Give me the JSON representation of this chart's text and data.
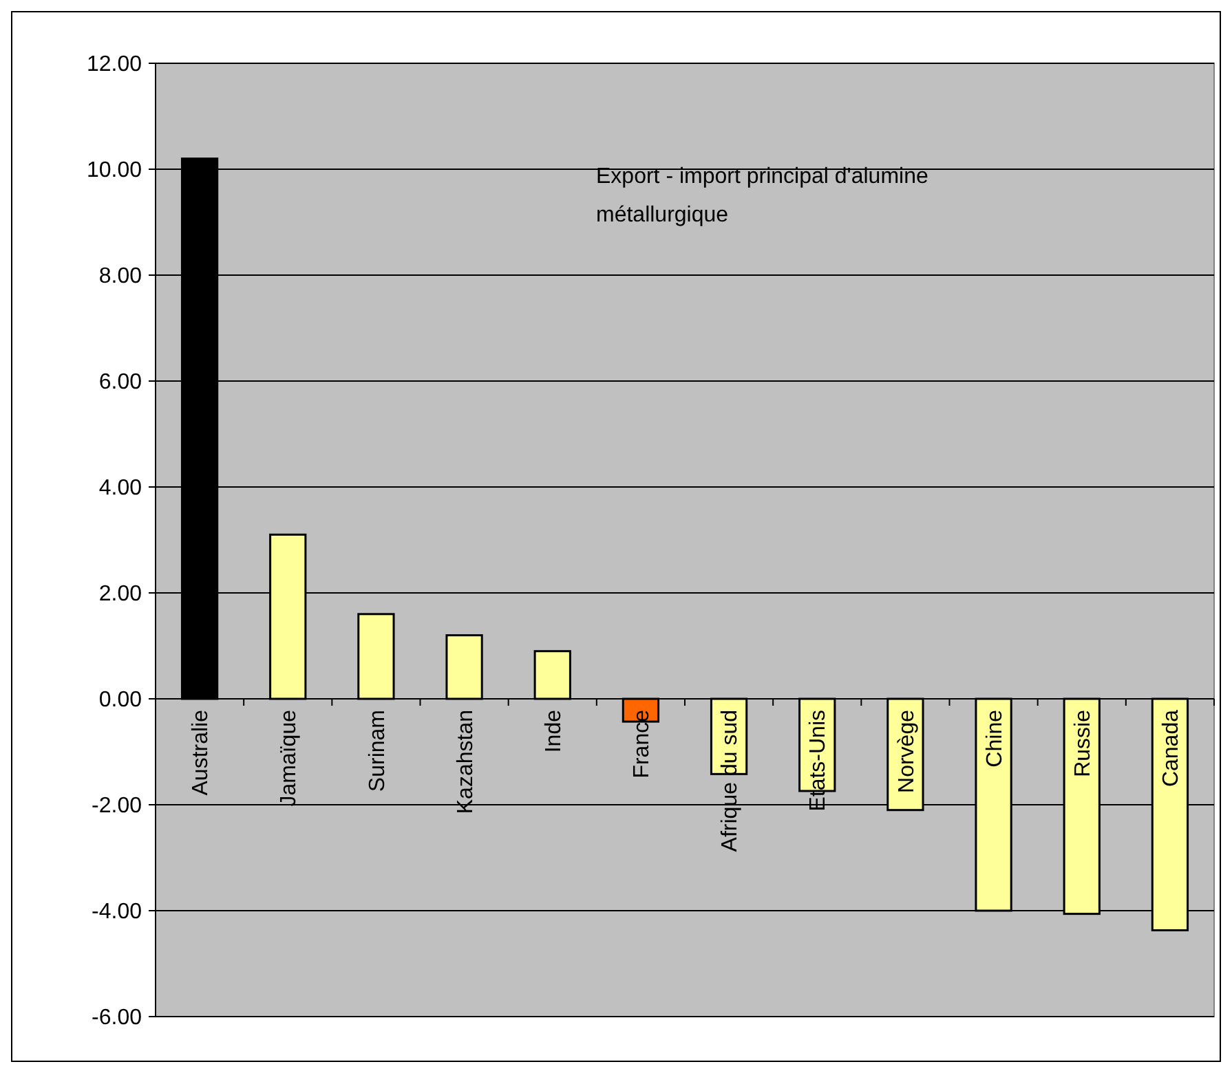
{
  "chart_data": {
    "type": "bar",
    "title": "Export - import principal d'alumine métallurgique",
    "categories": [
      "Australie",
      "Jamaïque",
      "Surinam",
      "Kazahstan",
      "Inde",
      "France",
      "Afrique du sud",
      "Etats-Unis",
      "Norvège",
      "Chine",
      "Russie",
      "Canada"
    ],
    "values": [
      10.2,
      3.1,
      1.6,
      1.2,
      0.9,
      -0.43,
      -1.42,
      -1.74,
      -2.1,
      -4.0,
      -4.06,
      -4.37
    ],
    "colors": [
      "#000000",
      "#ffff99",
      "#ffff99",
      "#ffff99",
      "#ffff99",
      "#ff6600",
      "#ffff99",
      "#ffff99",
      "#ffff99",
      "#ffff99",
      "#ffff99",
      "#ffff99"
    ],
    "ylim": [
      -6,
      12
    ],
    "yticks": [
      {
        "value": -6,
        "label": "-6.00"
      },
      {
        "value": -4,
        "label": "-4.00"
      },
      {
        "value": -2,
        "label": "-2.00"
      },
      {
        "value": 0,
        "label": "0.00"
      },
      {
        "value": 2,
        "label": "2.00"
      },
      {
        "value": 4,
        "label": "4.00"
      },
      {
        "value": 6,
        "label": "6.00"
      },
      {
        "value": 8,
        "label": "8.00"
      },
      {
        "value": 10,
        "label": "10.00"
      },
      {
        "value": 12,
        "label": "12.00"
      }
    ],
    "grid": "y"
  }
}
